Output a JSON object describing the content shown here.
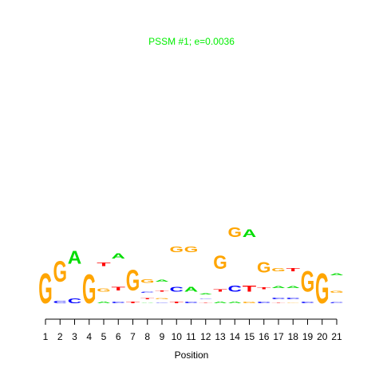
{
  "chart_data": {
    "type": "logo",
    "title": "PSSM #1; e=0.0036",
    "title_color": "#00ee00",
    "x_label": "Position",
    "colors": {
      "A": "#00dd00",
      "C": "#0000ff",
      "G": "#ffa500",
      "T": "#ff0000"
    },
    "xticks": [
      1,
      2,
      3,
      4,
      5,
      6,
      7,
      8,
      9,
      10,
      11,
      12,
      13,
      14,
      15,
      16,
      17,
      18,
      19,
      20,
      21
    ],
    "columns": [
      {
        "letters": [
          "G"
        ],
        "heights": [
          2.0
        ]
      },
      {
        "letters": [
          "C",
          "G"
        ],
        "heights": [
          0.17,
          1.4
        ]
      },
      {
        "letters": [
          "C",
          "A"
        ],
        "heights": [
          0.31,
          0.86
        ]
      },
      {
        "letters": [
          "G"
        ],
        "heights": [
          1.96
        ]
      },
      {
        "letters": [
          "A",
          "G",
          "T"
        ],
        "heights": [
          0.09,
          0.2,
          0.23
        ]
      },
      {
        "letters": [
          "C",
          "T",
          "A"
        ],
        "heights": [
          0.1,
          0.25,
          0.33
        ]
      },
      {
        "letters": [
          "T",
          "G"
        ],
        "heights": [
          0.1,
          1.38
        ]
      },
      {
        "letters": [
          "A",
          "T",
          "C",
          "G"
        ],
        "heights": [
          0.03,
          0.05,
          0.08,
          0.25
        ]
      },
      {
        "letters": [
          "C",
          "G",
          "T",
          "A"
        ],
        "heights": [
          0.03,
          0.06,
          0.08,
          0.14
        ]
      },
      {
        "letters": [
          "T",
          "C",
          "G"
        ],
        "heights": [
          0.09,
          0.31,
          0.39
        ]
      },
      {
        "letters": [
          "C",
          "A",
          "G"
        ],
        "heights": [
          0.09,
          0.31,
          0.39
        ]
      },
      {
        "letters": [
          "T",
          "C",
          "A"
        ],
        "heights": [
          0.03,
          0.04,
          0.06
        ]
      },
      {
        "letters": [
          "A",
          "T",
          "G"
        ],
        "heights": [
          0.09,
          0.18,
          0.9
        ]
      },
      {
        "letters": [
          "A",
          "C",
          "G"
        ],
        "heights": [
          0.09,
          0.43,
          0.66
        ]
      },
      {
        "letters": [
          "G",
          "T",
          "A"
        ],
        "heights": [
          0.09,
          0.43,
          0.51
        ]
      },
      {
        "letters": [
          "C",
          "T",
          "G"
        ],
        "heights": [
          0.11,
          0.13,
          0.69
        ]
      },
      {
        "letters": [
          "T",
          "C",
          "A",
          "G"
        ],
        "heights": [
          0.03,
          0.09,
          0.13,
          0.2
        ]
      },
      {
        "letters": [
          "G",
          "C",
          "A",
          "T"
        ],
        "heights": [
          0.03,
          0.09,
          0.13,
          0.2
        ]
      },
      {
        "letters": [
          "C",
          "G"
        ],
        "heights": [
          0.09,
          1.38
        ]
      },
      {
        "letters": [
          "G"
        ],
        "heights": [
          2.0
        ]
      },
      {
        "letters": [
          "C",
          "G",
          "A"
        ],
        "heights": [
          0.08,
          0.14,
          0.13
        ]
      }
    ]
  }
}
